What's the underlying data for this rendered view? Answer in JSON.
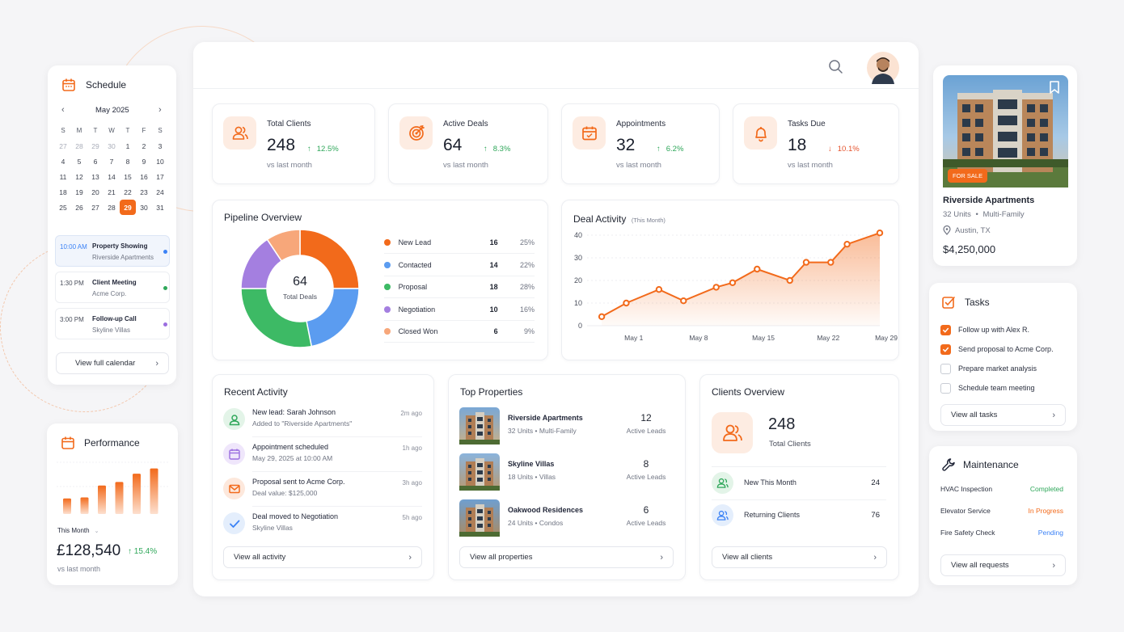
{
  "colors": {
    "accent": "#f26a1b",
    "accent_light": "#fdece2",
    "positive": "#2fa75a",
    "negative": "#e5532d",
    "pending": "#3b82f6"
  },
  "schedule": {
    "title": "Schedule",
    "month": "May 2025",
    "weekdays": [
      "S",
      "M",
      "T",
      "W",
      "T",
      "F",
      "S"
    ],
    "days": [
      [
        "27",
        "28",
        "29",
        "30",
        "1",
        "2",
        "3"
      ],
      [
        "4",
        "5",
        "6",
        "7",
        "8",
        "9",
        "10"
      ],
      [
        "11",
        "12",
        "13",
        "14",
        "15",
        "16",
        "17"
      ],
      [
        "18",
        "19",
        "20",
        "21",
        "22",
        "23",
        "24"
      ],
      [
        "25",
        "26",
        "27",
        "28",
        "29",
        "30",
        "31"
      ]
    ],
    "selected_day": "29",
    "events": [
      {
        "time": "10:00 AM",
        "title": "Property Showing",
        "place": "Riverside Apartments",
        "color": "#3b82f6"
      },
      {
        "time": "1:30 PM",
        "title": "Client Meeting",
        "place": "Acme Corp.",
        "color": "#2fa75a"
      },
      {
        "time": "3:00 PM",
        "title": "Follow-up Call",
        "place": "Skyline Villas",
        "color": "#9b6ee0"
      }
    ],
    "view_button": "View full calendar"
  },
  "performance": {
    "title": "Performance",
    "period": "This Month",
    "value": "£128,540",
    "change": "15.4%",
    "caption": "vs last month",
    "bars": [
      0.3,
      0.32,
      0.55,
      0.62,
      0.78,
      0.88
    ]
  },
  "stats": [
    {
      "label": "Total Clients",
      "value": "248",
      "change": "12.5%",
      "dir": "up",
      "caption": "vs last month",
      "icon": "users-icon"
    },
    {
      "label": "Active Deals",
      "value": "64",
      "change": "8.3%",
      "dir": "up",
      "caption": "vs last month",
      "icon": "target-icon"
    },
    {
      "label": "Appointments",
      "value": "32",
      "change": "6.2%",
      "dir": "up",
      "caption": "vs last month",
      "icon": "calendar-icon"
    },
    {
      "label": "Tasks Due",
      "value": "18",
      "change": "10.1%",
      "dir": "down",
      "caption": "vs last month",
      "icon": "bell-icon"
    }
  ],
  "pipeline": {
    "title": "Pipeline Overview",
    "center_value": "64",
    "center_label": "Total Deals",
    "stages": [
      {
        "name": "New Lead",
        "count": 16,
        "pct": "25%",
        "color": "#f26a1b"
      },
      {
        "name": "Contacted",
        "count": 14,
        "pct": "22%",
        "color": "#5b9cf0"
      },
      {
        "name": "Proposal",
        "count": 18,
        "pct": "28%",
        "color": "#3dba65"
      },
      {
        "name": "Negotiation",
        "count": 10,
        "pct": "16%",
        "color": "#a47fe0"
      },
      {
        "name": "Closed Won",
        "count": 6,
        "pct": "9%",
        "color": "#f7a77a"
      }
    ]
  },
  "chart_data": {
    "type": "area",
    "title": "Deal Activity",
    "subtitle": "(This Month)",
    "ylim": [
      0,
      40
    ],
    "yticks": [
      0,
      10,
      20,
      30,
      40
    ],
    "xtick_labels": [
      "May 1",
      "May 8",
      "May 15",
      "May 22",
      "May 29"
    ],
    "x": [
      1,
      4,
      8,
      11,
      15,
      17,
      20,
      24,
      26,
      29,
      31,
      35
    ],
    "values": [
      4,
      10,
      16,
      11,
      17,
      19,
      25,
      20,
      28,
      28,
      36,
      41
    ],
    "grid": true,
    "color": "#f26a1b"
  },
  "activity": {
    "title": "Recent Activity",
    "items": [
      {
        "title": "New lead: Sarah Johnson",
        "detail": "Added to \"Riverside Apartments\"",
        "time": "2m ago",
        "icon": "user-icon",
        "bg": "#e3f4e8",
        "fg": "#2fa75a"
      },
      {
        "title": "Appointment scheduled",
        "detail": "May 29, 2025 at 10:00 AM",
        "time": "1h ago",
        "icon": "calendar-icon",
        "bg": "#efe6fb",
        "fg": "#9b6ee0"
      },
      {
        "title": "Proposal sent to Acme Corp.",
        "detail": "Deal value: $125,000",
        "time": "3h ago",
        "icon": "mail-icon",
        "bg": "#fde8dc",
        "fg": "#f26a1b"
      },
      {
        "title": "Deal moved to Negotiation",
        "detail": "Skyline Villas",
        "time": "5h ago",
        "icon": "check-icon",
        "bg": "#e4eefc",
        "fg": "#3b82f6"
      }
    ],
    "view_button": "View all activity"
  },
  "properties": {
    "title": "Top Properties",
    "items": [
      {
        "name": "Riverside Apartments",
        "units": "32 Units",
        "type": "Multi-Family",
        "leads": "12",
        "leads_label": "Active Leads"
      },
      {
        "name": "Skyline Villas",
        "units": "18 Units",
        "type": "Villas",
        "leads": "8",
        "leads_label": "Active Leads"
      },
      {
        "name": "Oakwood Residences",
        "units": "24 Units",
        "type": "Condos",
        "leads": "6",
        "leads_label": "Active Leads"
      }
    ],
    "view_button": "View all properties"
  },
  "clients": {
    "title": "Clients Overview",
    "total": "248",
    "total_label": "Total Clients",
    "rows": [
      {
        "label": "New This Month",
        "value": "24"
      },
      {
        "label": "Returning Clients",
        "value": "76"
      }
    ],
    "view_button": "View all clients"
  },
  "listing": {
    "badge": "FOR SALE",
    "name": "Riverside Apartments",
    "units": "32 Units",
    "type": "Multi-Family",
    "location": "Austin, TX",
    "price": "$4,250,000"
  },
  "tasks": {
    "title": "Tasks",
    "items": [
      {
        "label": "Follow up with Alex R.",
        "done": true
      },
      {
        "label": "Send proposal to Acme Corp.",
        "done": true
      },
      {
        "label": "Prepare market analysis",
        "done": false
      },
      {
        "label": "Schedule team meeting",
        "done": false
      }
    ],
    "view_button": "View all tasks"
  },
  "maintenance": {
    "title": "Maintenance",
    "items": [
      {
        "label": "HVAC Inspection",
        "status": "Completed",
        "color": "#2fa75a"
      },
      {
        "label": "Elevator Service",
        "status": "In Progress",
        "color": "#f26a1b"
      },
      {
        "label": "Fire Safety Check",
        "status": "Pending",
        "color": "#3b82f6"
      }
    ],
    "view_button": "View all requests"
  }
}
